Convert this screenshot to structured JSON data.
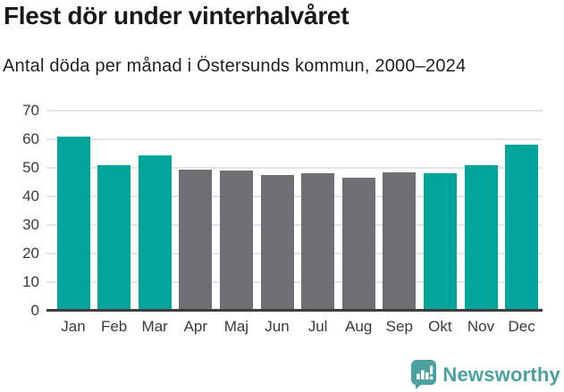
{
  "title": "Flest dör under vinterhalvåret",
  "subtitle": "Antal döda per månad i Östersunds kommun, 2000–2024",
  "footer": {
    "brand": "Newsworthy",
    "logo_icon": "newsworthy-speech-bubble-bar-chart-icon"
  },
  "colors": {
    "highlight_teal": "#00a49b",
    "muted_gray": "#6e6e73",
    "gridline": "#e4e4e4",
    "axis": "#3e3e3e",
    "brand_teal": "#4ba1a0"
  },
  "chart_data": {
    "type": "bar",
    "title": "Flest dör under vinterhalvåret",
    "subtitle": "Antal döda per månad i Östersunds kommun, 2000–2024",
    "categories": [
      "Jan",
      "Feb",
      "Mar",
      "Apr",
      "Maj",
      "Jun",
      "Jul",
      "Aug",
      "Sep",
      "Okt",
      "Nov",
      "Dec"
    ],
    "values": [
      61,
      51,
      54.5,
      49.5,
      49,
      47.5,
      48,
      46.5,
      48.5,
      48,
      51,
      58
    ],
    "bar_colors": [
      "teal",
      "teal",
      "teal",
      "gray",
      "gray",
      "gray",
      "gray",
      "gray",
      "gray",
      "teal",
      "teal",
      "teal"
    ],
    "palette": {
      "teal": "#00a49b",
      "gray": "#6e6e73"
    },
    "xlabel": "",
    "ylabel": "",
    "ylim": [
      0,
      70
    ],
    "yticks": [
      0,
      10,
      20,
      30,
      40,
      50,
      60,
      70
    ],
    "grid": "horizontal-only",
    "legend": "none"
  }
}
